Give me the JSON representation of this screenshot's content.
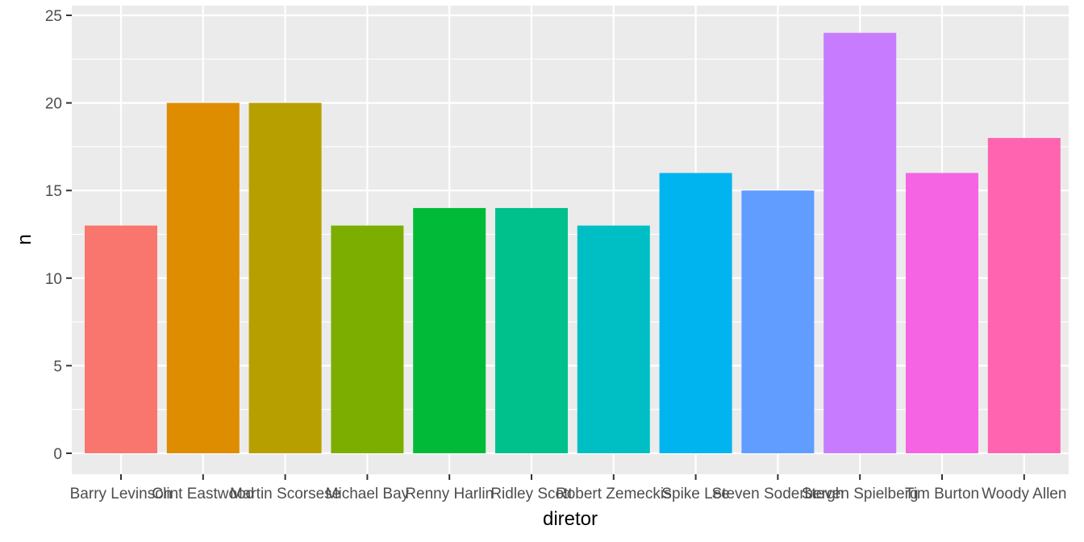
{
  "chart_data": {
    "type": "bar",
    "xlabel": "diretor",
    "ylabel": "n",
    "ylim": [
      0,
      25
    ],
    "yticks": [
      0,
      5,
      10,
      15,
      20,
      25
    ],
    "grid": true,
    "legend": "none",
    "categories": [
      "Barry Levinson",
      "Clint Eastwood",
      "Martin Scorsese",
      "Michael Bay",
      "Renny Harlin",
      "Ridley Scott",
      "Robert Zemeckis",
      "Spike Lee",
      "Steven Soderbergh",
      "Steven Spielberg",
      "Tim Burton",
      "Woody Allen"
    ],
    "values": [
      13,
      20,
      20,
      13,
      14,
      14,
      13,
      16,
      15,
      24,
      16,
      18
    ],
    "colors": [
      "#F8766D",
      "#DE8C00",
      "#B79F00",
      "#7CAE00",
      "#00BA38",
      "#00C08B",
      "#00BFC4",
      "#00B4F0",
      "#619CFF",
      "#C77CFF",
      "#F564E3",
      "#FF64B0"
    ],
    "panel_background": "#EBEBEB",
    "grid_color": "#FFFFFF"
  }
}
